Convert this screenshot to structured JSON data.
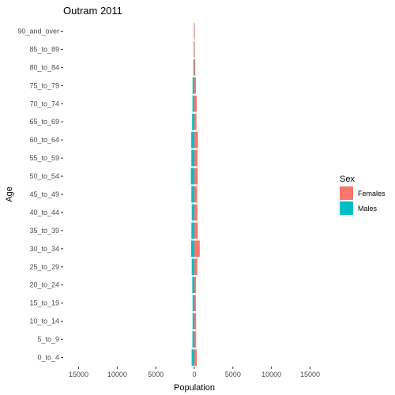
{
  "chart_data": {
    "type": "bar",
    "orientation": "horizontal",
    "title": "Outram  2011",
    "xlabel": "Population",
    "ylabel": "Age",
    "xlim": [
      -17000,
      17000
    ],
    "x_ticks": [
      -15000,
      -10000,
      -5000,
      0,
      5000,
      10000,
      15000
    ],
    "x_tick_labels": [
      "15000",
      "10000",
      "5000",
      "0",
      "5000",
      "10000",
      "15000"
    ],
    "grid": false,
    "legend": {
      "title": "Sex",
      "position": "right"
    },
    "categories": [
      "0_to_4",
      "5_to_9",
      "10_to_14",
      "15_to_19",
      "20_to_24",
      "25_to_29",
      "30_to_34",
      "35_to_39",
      "40_to_44",
      "45_to_49",
      "50_to_54",
      "55_to_59",
      "60_to_64",
      "65_to_69",
      "70_to_74",
      "75_to_79",
      "80_to_84",
      "85_to_89",
      "90_and_over"
    ],
    "series": [
      {
        "name": "Females",
        "color": "#F8766D",
        "values": [
          320,
          230,
          230,
          210,
          220,
          380,
          700,
          450,
          400,
          370,
          440,
          430,
          470,
          270,
          310,
          210,
          120,
          70,
          70
        ]
      },
      {
        "name": "Males",
        "color": "#00BFC4",
        "values": [
          -350,
          -250,
          -230,
          -230,
          -270,
          -340,
          -420,
          -380,
          -340,
          -390,
          -450,
          -390,
          -400,
          -290,
          -240,
          -230,
          -110,
          -60,
          -40
        ]
      }
    ]
  }
}
